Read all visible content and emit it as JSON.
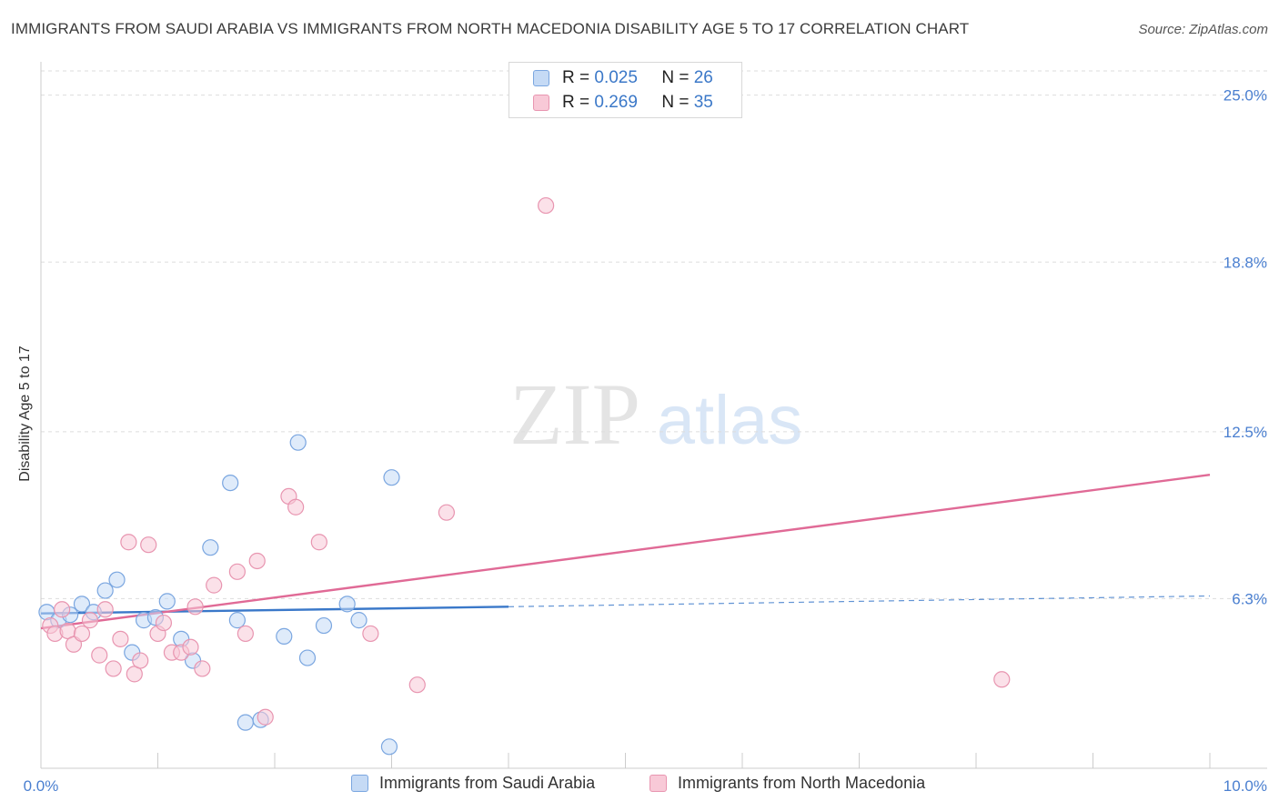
{
  "header": {
    "title": "IMMIGRANTS FROM SAUDI ARABIA VS IMMIGRANTS FROM NORTH MACEDONIA DISABILITY AGE 5 TO 17 CORRELATION CHART",
    "source": "Source: ZipAtlas.com"
  },
  "watermark": {
    "zip": "ZIP",
    "atlas": "atlas"
  },
  "legend_top": {
    "r_label": "R =",
    "n_label": "N =",
    "rows": [
      {
        "r": "0.025",
        "n": "26"
      },
      {
        "r": "0.269",
        "n": "35"
      }
    ]
  },
  "colors": {
    "blue_fill": "#c5daf5",
    "blue_stroke": "#7aa6e0",
    "blue_line": "#3a78c9",
    "pink_fill": "#f8c9d7",
    "pink_stroke": "#e895b0",
    "pink_line": "#e06a96",
    "tick_label": "#4a7fd0",
    "grid": "#dddddd"
  },
  "chart_data": {
    "type": "scatter",
    "title": "IMMIGRANTS FROM SAUDI ARABIA VS IMMIGRANTS FROM NORTH MACEDONIA DISABILITY AGE 5 TO 17 CORRELATION CHART",
    "xlabel": "",
    "ylabel": "Disability Age 5 to 17",
    "xlim": [
      0,
      10
    ],
    "ylim": [
      0,
      25.9
    ],
    "x_tick_labels": [
      "0.0%",
      "10.0%"
    ],
    "y_ticks": [
      6.3,
      12.5,
      18.8,
      25.0
    ],
    "y_tick_labels": [
      "6.3%",
      "12.5%",
      "18.8%",
      "25.0%"
    ],
    "series": [
      {
        "name": "Immigrants from Saudi Arabia",
        "r": 0.025,
        "n": 26,
        "points": [
          [
            0.05,
            5.8
          ],
          [
            0.15,
            5.5
          ],
          [
            0.25,
            5.7
          ],
          [
            0.35,
            6.1
          ],
          [
            0.45,
            5.8
          ],
          [
            0.55,
            6.6
          ],
          [
            0.65,
            7.0
          ],
          [
            0.78,
            4.3
          ],
          [
            0.88,
            5.5
          ],
          [
            0.98,
            5.6
          ],
          [
            1.08,
            6.2
          ],
          [
            1.2,
            4.8
          ],
          [
            1.3,
            4.0
          ],
          [
            1.45,
            8.2
          ],
          [
            1.62,
            10.6
          ],
          [
            1.68,
            5.5
          ],
          [
            1.75,
            1.7
          ],
          [
            1.88,
            1.8
          ],
          [
            2.08,
            4.9
          ],
          [
            2.2,
            12.1
          ],
          [
            2.28,
            4.1
          ],
          [
            2.42,
            5.3
          ],
          [
            2.62,
            6.1
          ],
          [
            2.72,
            5.5
          ],
          [
            3.0,
            10.8
          ],
          [
            2.98,
            0.8
          ]
        ],
        "trend": {
          "x": [
            0.0,
            4.0
          ],
          "y": [
            5.75,
            6.0
          ]
        },
        "trend_dashed": {
          "x": [
            4.0,
            10.0
          ],
          "y": [
            6.0,
            6.4
          ]
        }
      },
      {
        "name": "Immigrants from North Macedonia",
        "r": 0.269,
        "n": 35,
        "points": [
          [
            0.08,
            5.3
          ],
          [
            0.12,
            5.0
          ],
          [
            0.18,
            5.9
          ],
          [
            0.23,
            5.1
          ],
          [
            0.28,
            4.6
          ],
          [
            0.35,
            5.0
          ],
          [
            0.42,
            5.5
          ],
          [
            0.5,
            4.2
          ],
          [
            0.55,
            5.9
          ],
          [
            0.62,
            3.7
          ],
          [
            0.68,
            4.8
          ],
          [
            0.75,
            8.4
          ],
          [
            0.8,
            3.5
          ],
          [
            0.85,
            4.0
          ],
          [
            0.92,
            8.3
          ],
          [
            1.0,
            5.0
          ],
          [
            1.05,
            5.4
          ],
          [
            1.12,
            4.3
          ],
          [
            1.2,
            4.3
          ],
          [
            1.28,
            4.5
          ],
          [
            1.32,
            6.0
          ],
          [
            1.38,
            3.7
          ],
          [
            1.48,
            6.8
          ],
          [
            1.68,
            7.3
          ],
          [
            1.75,
            5.0
          ],
          [
            1.85,
            7.7
          ],
          [
            1.92,
            1.9
          ],
          [
            2.12,
            10.1
          ],
          [
            2.18,
            9.7
          ],
          [
            2.38,
            8.4
          ],
          [
            2.82,
            5.0
          ],
          [
            3.22,
            3.1
          ],
          [
            3.47,
            9.5
          ],
          [
            4.32,
            20.9
          ],
          [
            8.22,
            3.3
          ]
        ],
        "trend": {
          "x": [
            0.0,
            10.0
          ],
          "y": [
            5.2,
            10.9
          ]
        }
      }
    ],
    "legend": [
      "Immigrants from Saudi Arabia",
      "Immigrants from North Macedonia"
    ],
    "legend_position": "bottom"
  }
}
